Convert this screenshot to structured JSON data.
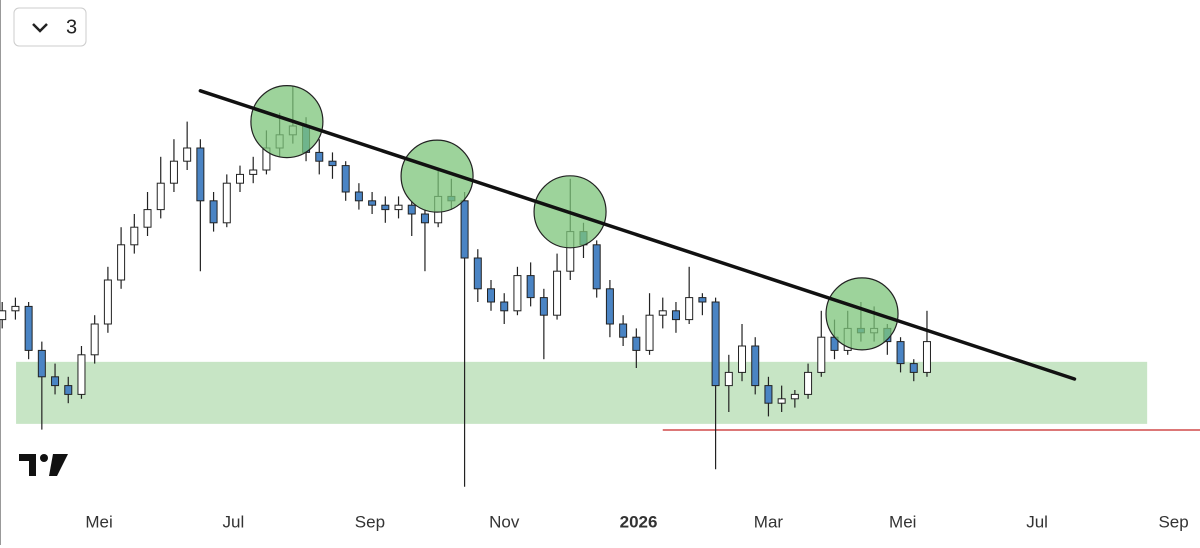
{
  "chart_data": {
    "type": "candlestick",
    "button_label": "3",
    "xlim": [
      -15,
      530
    ],
    "ylim": [
      0,
      100
    ],
    "xticks": [
      {
        "value": 30,
        "label": "Mei"
      },
      {
        "value": 91,
        "label": "Jul"
      },
      {
        "value": 153,
        "label": "Sep"
      },
      {
        "value": 214,
        "label": "Nov"
      },
      {
        "value": 275,
        "label": "2026",
        "bold": true
      },
      {
        "value": 334,
        "label": "Mar"
      },
      {
        "value": 395,
        "label": "Mei"
      },
      {
        "value": 456,
        "label": "Jul"
      },
      {
        "value": 518,
        "label": "Sep"
      }
    ],
    "x": [
      -14,
      -8,
      -2,
      4,
      10,
      16,
      22,
      28,
      34,
      40,
      46,
      52,
      58,
      64,
      70,
      76,
      82,
      88,
      94,
      100,
      106,
      112,
      118,
      124,
      130,
      136,
      142,
      148,
      154,
      160,
      166,
      172,
      178,
      184,
      190,
      196,
      202,
      208,
      214,
      220,
      226,
      232,
      238,
      244,
      250,
      256,
      262,
      268,
      274,
      280,
      286,
      292,
      298,
      304,
      310,
      316,
      322,
      328,
      334,
      340,
      346,
      352,
      358,
      364,
      370,
      376,
      382,
      388,
      394,
      400,
      406
    ],
    "open": [
      41,
      43,
      44,
      34,
      28,
      26,
      24,
      33,
      40,
      50,
      58,
      62,
      66,
      72,
      77,
      80,
      68,
      63,
      72,
      74,
      75,
      80,
      83,
      85,
      79,
      77,
      76,
      70,
      68,
      67,
      66,
      67,
      65,
      63,
      69,
      68,
      55,
      48,
      45,
      43,
      51,
      46,
      42,
      52,
      61,
      58,
      48,
      40,
      37,
      34,
      42,
      43,
      41,
      46,
      45,
      26,
      29,
      35,
      26,
      22,
      23,
      24,
      29,
      37,
      34,
      39,
      38,
      39,
      36,
      31,
      29
    ],
    "high": [
      45,
      46,
      45,
      36,
      31,
      28,
      35,
      42,
      53,
      62,
      65,
      70,
      78,
      82,
      86,
      82,
      70,
      74,
      76,
      78,
      84,
      88,
      94,
      87,
      82,
      79,
      77,
      72,
      70,
      69,
      69,
      68,
      66,
      75,
      73,
      70,
      57,
      50,
      47,
      53,
      54,
      48,
      56,
      73,
      63,
      59,
      50,
      42,
      39,
      47,
      46,
      45,
      53,
      47,
      46,
      33,
      40,
      37,
      28,
      26,
      25,
      31,
      43,
      41,
      43,
      45,
      44,
      40,
      37,
      32,
      43
    ],
    "low": [
      39,
      41,
      32,
      16,
      24,
      22,
      23,
      31,
      38,
      48,
      56,
      60,
      64,
      70,
      75,
      52,
      61,
      62,
      70,
      72,
      74,
      78,
      81,
      77,
      74,
      73,
      68,
      66,
      65,
      63,
      64,
      60,
      52,
      62,
      66,
      3,
      45,
      43,
      40,
      42,
      44,
      32,
      41,
      50,
      55,
      46,
      37,
      35,
      30,
      33,
      39,
      38,
      40,
      42,
      7,
      20,
      27,
      24,
      19,
      20,
      21,
      23,
      28,
      32,
      33,
      36,
      36,
      33,
      29,
      27,
      28
    ],
    "close": [
      43,
      44,
      34,
      28,
      26,
      24,
      33,
      40,
      50,
      58,
      62,
      66,
      72,
      77,
      80,
      68,
      63,
      72,
      74,
      75,
      80,
      83,
      85,
      79,
      77,
      76,
      70,
      68,
      67,
      66,
      67,
      65,
      63,
      69,
      68,
      55,
      48,
      45,
      43,
      51,
      46,
      42,
      52,
      61,
      58,
      48,
      40,
      37,
      34,
      42,
      43,
      41,
      46,
      45,
      26,
      29,
      35,
      26,
      22,
      23,
      24,
      29,
      37,
      34,
      39,
      38,
      39,
      36,
      31,
      29,
      36
    ],
    "up_color": "#ffffff",
    "down_color": "#4a84c4",
    "trendline": {
      "x": [
        76,
        473
      ],
      "y": [
        93,
        27.5
      ],
      "color": "#111111"
    },
    "zone": {
      "x": [
        -7.7,
        506
      ],
      "y": [
        17.3,
        31.4
      ],
      "color": "#c4e4c2"
    },
    "hline": {
      "x": [
        286,
        530
      ],
      "y": 15.9,
      "color": "#d04a4a"
    },
    "circles": {
      "x": [
        115.3,
        183.5,
        243.9,
        376.5
      ],
      "y": [
        86,
        73.6,
        65.5,
        42.3
      ],
      "color": "#7cc47a"
    }
  }
}
